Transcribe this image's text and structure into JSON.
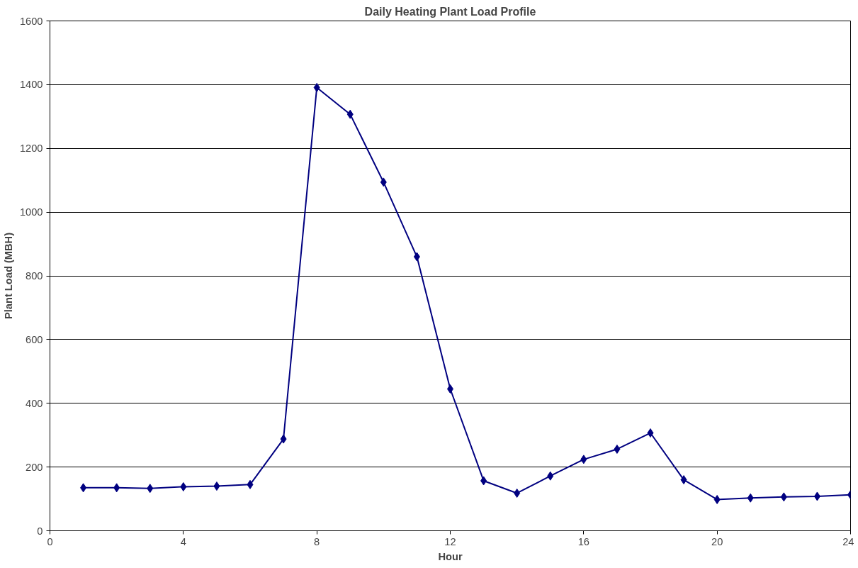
{
  "chart_data": {
    "type": "line",
    "title": "Daily Heating Plant Load Profile",
    "xlabel": "Hour",
    "ylabel": "Plant Load (MBH)",
    "x": [
      1,
      2,
      3,
      4,
      5,
      6,
      7,
      8,
      9,
      10,
      11,
      12,
      13,
      14,
      15,
      16,
      17,
      18,
      19,
      20,
      21,
      22,
      23,
      24
    ],
    "series": [
      {
        "color": "#000080",
        "values": [
          135,
          135,
          133,
          138,
          140,
          145,
          288,
          1391,
          1307,
          1094,
          860,
          445,
          157,
          118,
          172,
          224,
          256,
          307,
          160,
          98,
          103,
          106,
          108,
          113
        ]
      }
    ],
    "xlim": [
      0,
      24
    ],
    "xticks": [
      0,
      4,
      8,
      12,
      16,
      20,
      24
    ],
    "ylim": [
      0,
      1600
    ],
    "yticks": [
      0,
      200,
      400,
      600,
      800,
      1000,
      1200,
      1400,
      1600
    ],
    "grid": "y",
    "marker": "diamond",
    "line_style": "solid"
  }
}
